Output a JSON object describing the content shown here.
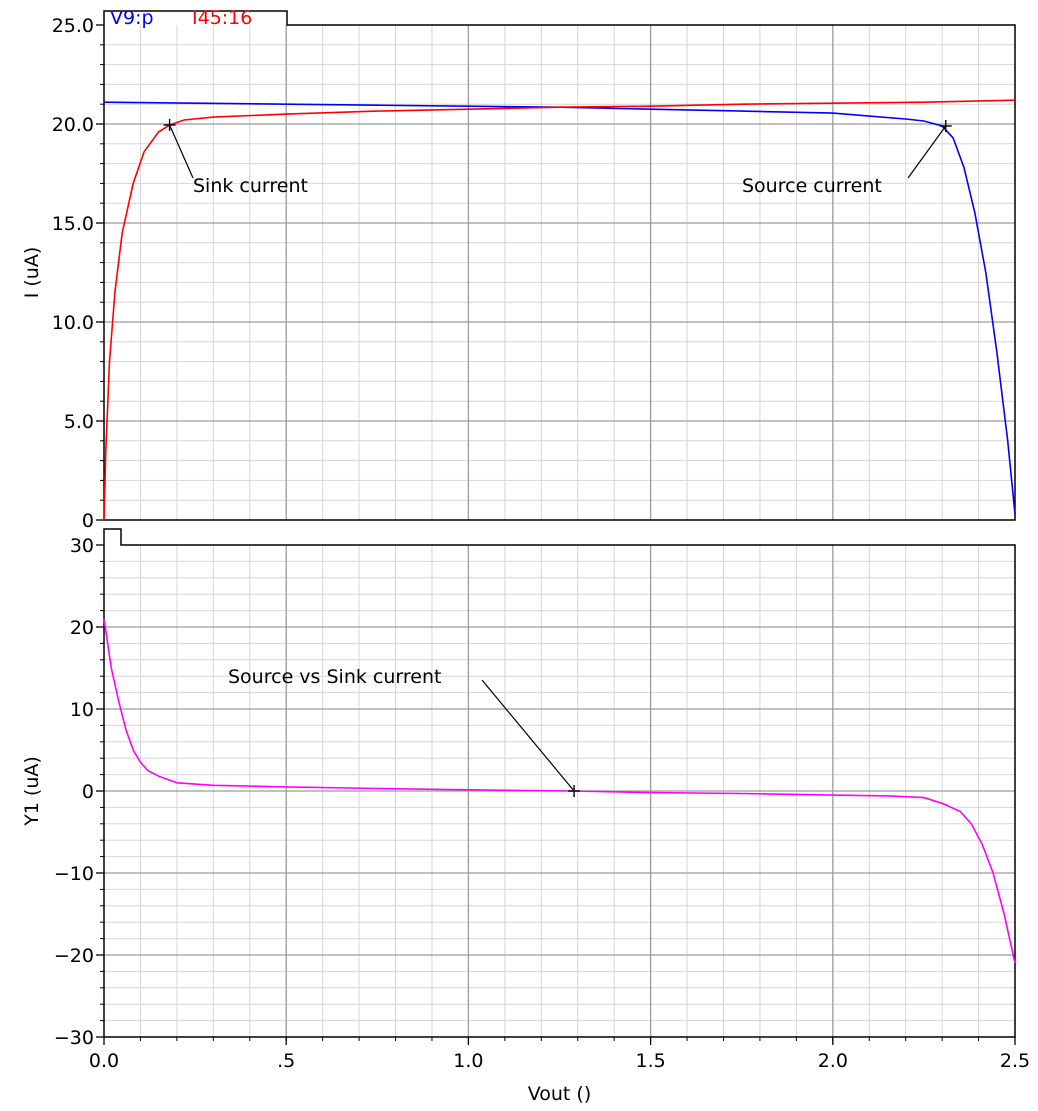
{
  "chart_data": [
    {
      "type": "line",
      "panel": "top",
      "xlabel": "",
      "ylabel": "I (uA)",
      "xlim": [
        0,
        2.5
      ],
      "ylim": [
        0,
        25
      ],
      "x_ticks": [
        "0.0",
        ".5",
        "1.0",
        "1.5",
        "2.0",
        "2.5"
      ],
      "y_ticks": [
        "0",
        "5.0",
        "10.0",
        "15.0",
        "20.0",
        "25.0"
      ],
      "y_tick_values": [
        0,
        5,
        10,
        15,
        20,
        25
      ],
      "grid": true,
      "legend_position": "top-left",
      "series": [
        {
          "name": "V9:p",
          "color": "#0000ff",
          "x": [
            0,
            0.25,
            0.5,
            0.75,
            1.0,
            1.25,
            1.5,
            1.75,
            2.0,
            2.1,
            2.2,
            2.25,
            2.3,
            2.33,
            2.36,
            2.39,
            2.42,
            2.45,
            2.48,
            2.5
          ],
          "y": [
            21.1,
            21.05,
            21.0,
            20.95,
            20.9,
            20.85,
            20.75,
            20.65,
            20.55,
            20.4,
            20.25,
            20.15,
            19.9,
            19.3,
            17.8,
            15.5,
            12.5,
            8.5,
            4.0,
            0.3
          ]
        },
        {
          "name": "I45:16",
          "color": "#ff0000",
          "x": [
            0,
            0.005,
            0.015,
            0.03,
            0.05,
            0.08,
            0.11,
            0.15,
            0.18,
            0.22,
            0.3,
            0.5,
            0.75,
            1.0,
            1.25,
            1.5,
            1.75,
            2.0,
            2.25,
            2.5
          ],
          "y": [
            0,
            3.5,
            8.0,
            11.5,
            14.5,
            17.0,
            18.6,
            19.6,
            19.95,
            20.2,
            20.35,
            20.5,
            20.65,
            20.75,
            20.85,
            20.9,
            21.0,
            21.05,
            21.1,
            21.2
          ]
        }
      ],
      "annotations": [
        {
          "text": "Sink current",
          "x": 0.18,
          "y": 19.95
        },
        {
          "text": "Source current",
          "x": 2.31,
          "y": 19.9
        }
      ]
    },
    {
      "type": "line",
      "panel": "bottom",
      "xlabel": "Vout ()",
      "ylabel": "Y1 (uA)",
      "xlim": [
        0,
        2.5
      ],
      "ylim": [
        -30,
        30
      ],
      "x_ticks": [
        "0.0",
        ".5",
        "1.0",
        "1.5",
        "2.0",
        "2.5"
      ],
      "y_ticks": [
        "−30",
        "−20",
        "−10",
        "0",
        "10",
        "20",
        "30"
      ],
      "y_tick_values": [
        -30,
        -20,
        -10,
        0,
        10,
        20,
        30
      ],
      "grid": true,
      "series": [
        {
          "name": "",
          "color": "#ff00ff",
          "x": [
            0,
            0.02,
            0.04,
            0.06,
            0.08,
            0.1,
            0.12,
            0.15,
            0.2,
            0.3,
            0.5,
            0.75,
            1.0,
            1.29,
            1.5,
            1.75,
            2.0,
            2.15,
            2.25,
            2.3,
            2.35,
            2.38,
            2.41,
            2.44,
            2.47,
            2.5
          ],
          "y": [
            21,
            15,
            11,
            7.5,
            5.0,
            3.5,
            2.5,
            1.8,
            1.0,
            0.7,
            0.5,
            0.3,
            0.15,
            0,
            -0.2,
            -0.3,
            -0.5,
            -0.6,
            -0.8,
            -1.5,
            -2.5,
            -4.0,
            -6.5,
            -10.0,
            -15.0,
            -21.0
          ]
        }
      ],
      "annotations": [
        {
          "text": "Source vs Sink current",
          "x": 1.29,
          "y": 0
        }
      ]
    }
  ]
}
